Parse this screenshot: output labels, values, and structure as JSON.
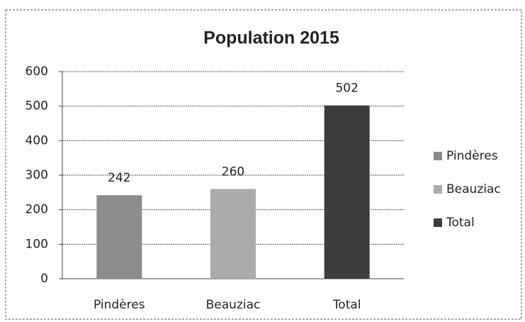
{
  "chart_data": {
    "type": "bar",
    "title": "Population 2015",
    "categories": [
      "Pindères",
      "Beauziac",
      "Total"
    ],
    "values": [
      242,
      260,
      502
    ],
    "colors": [
      "#8c8c8c",
      "#ababab",
      "#3c3c3c"
    ],
    "ylim": [
      0,
      600
    ],
    "yticks": [
      0,
      100,
      200,
      300,
      400,
      500,
      600
    ],
    "grid": true,
    "data_labels": true,
    "legend": "right"
  }
}
